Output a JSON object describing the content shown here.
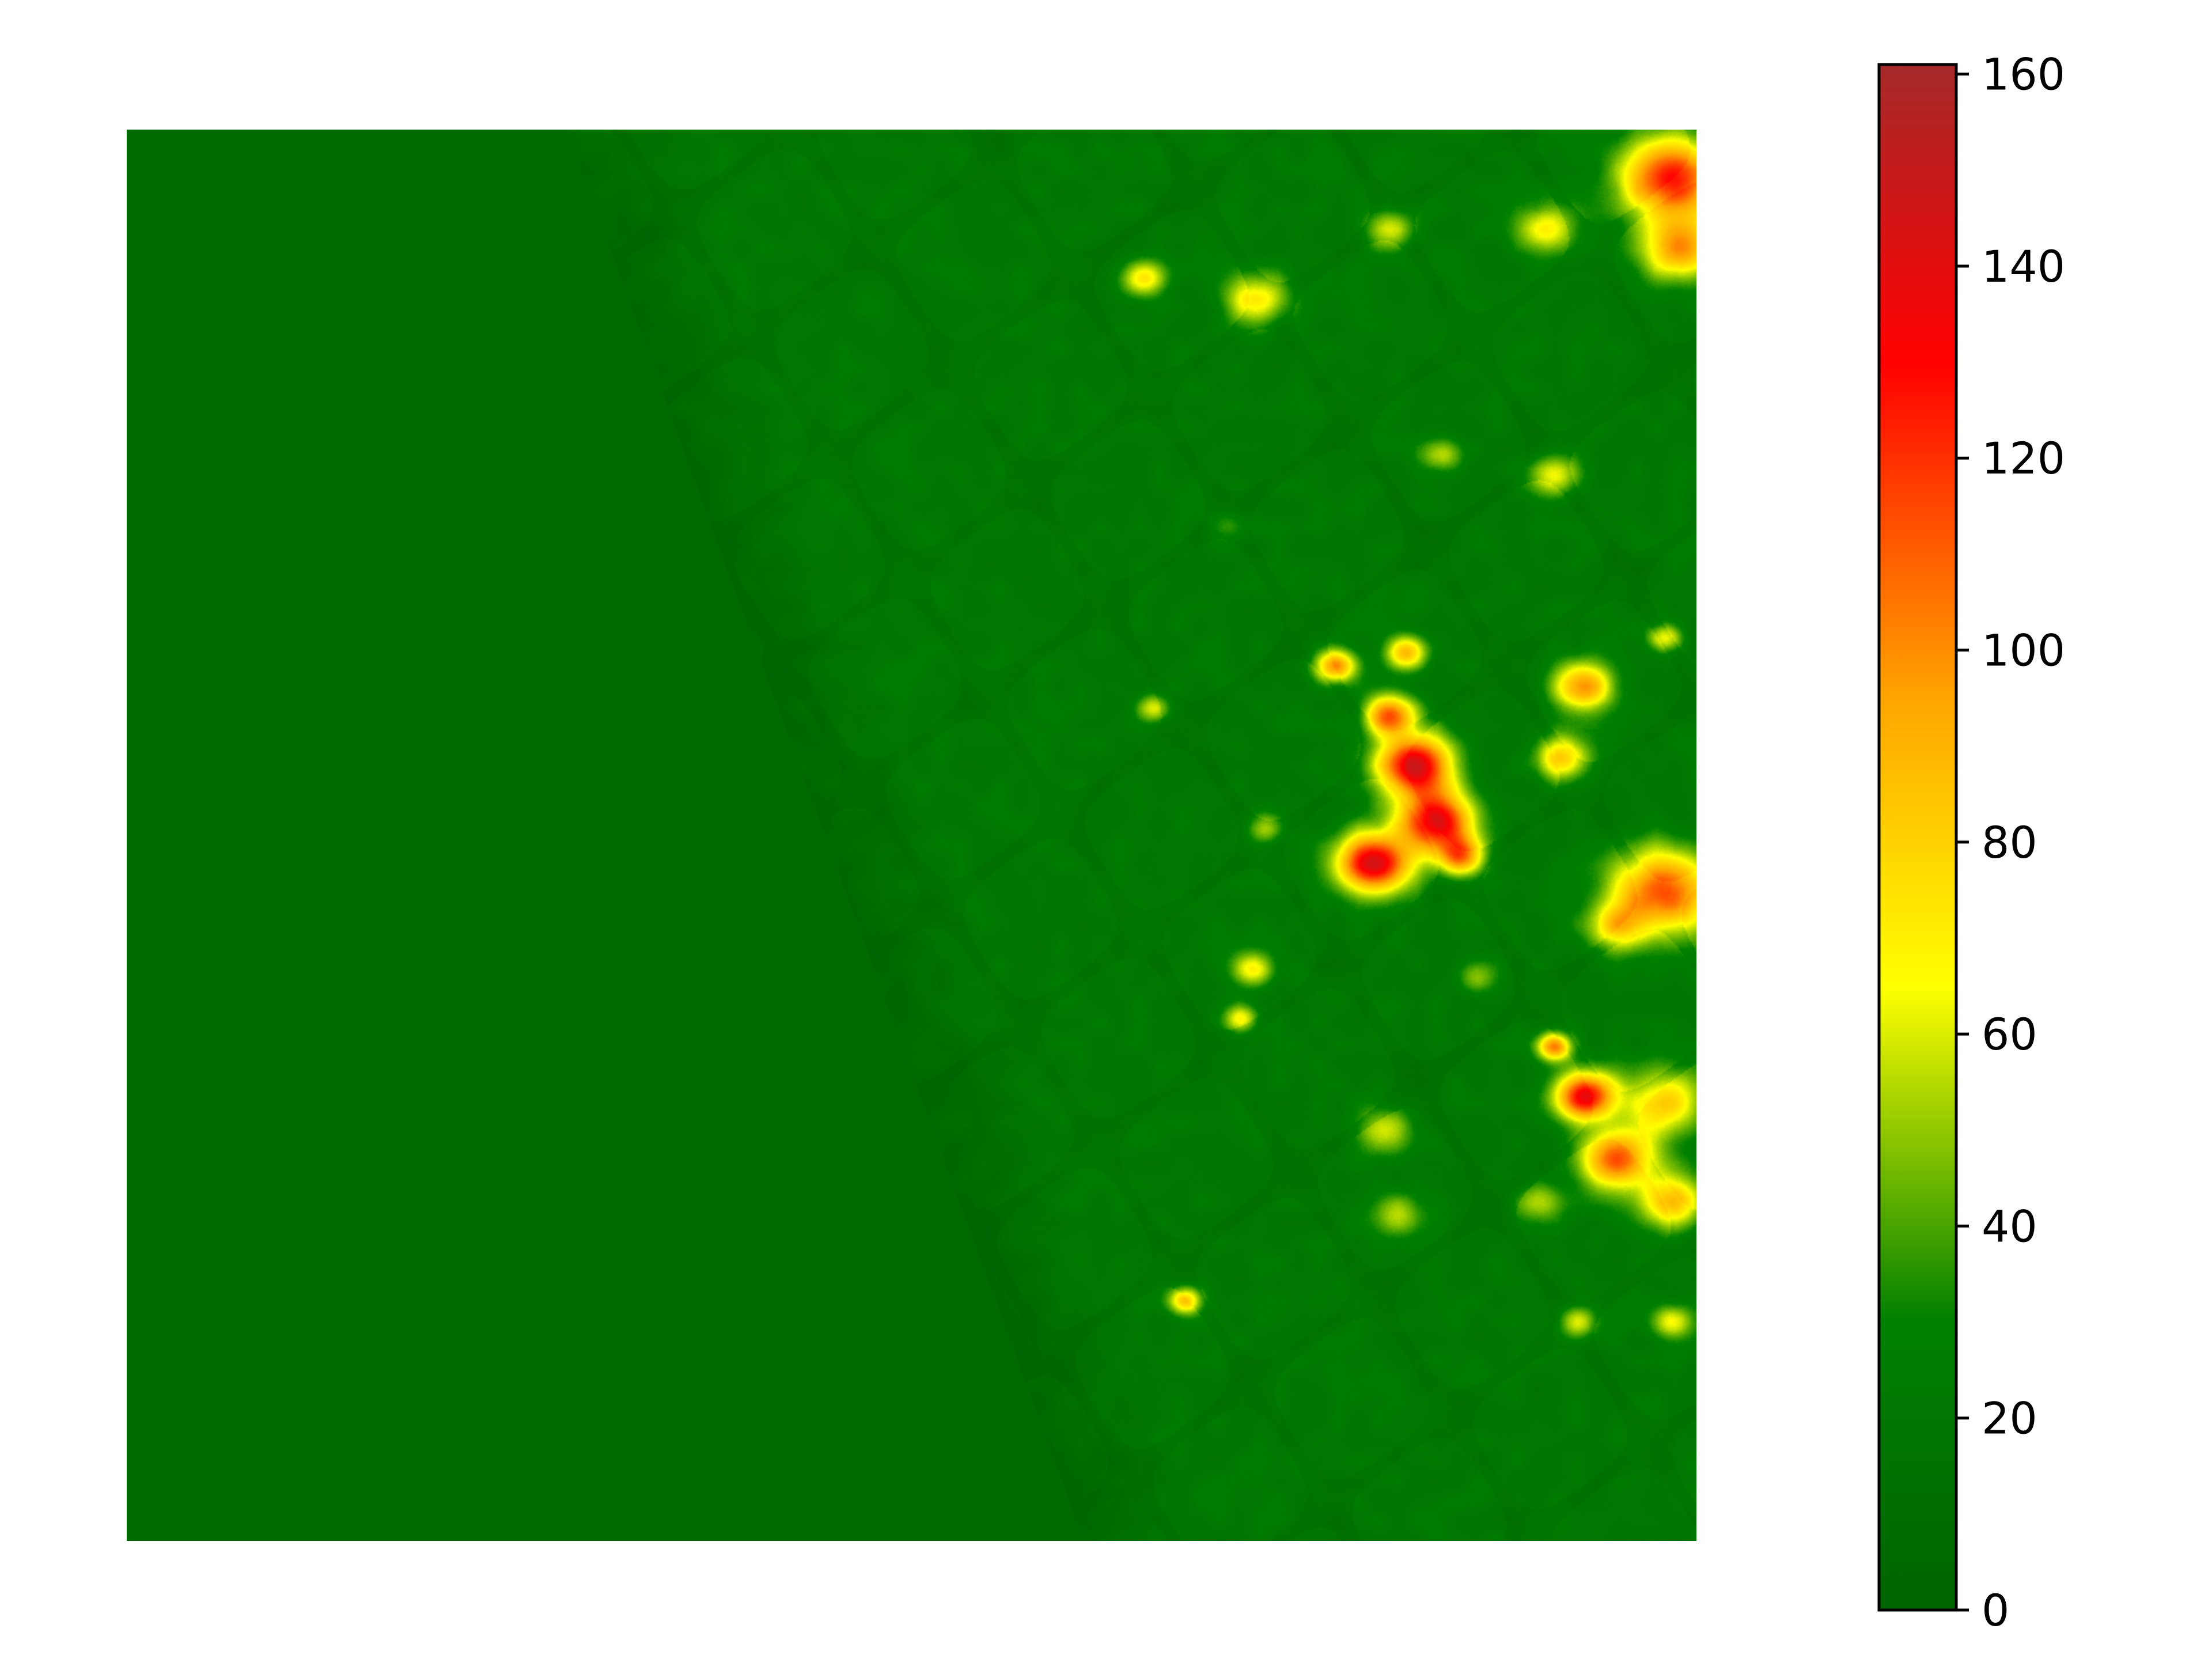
{
  "chart_data": {
    "type": "heatmap",
    "title": "",
    "xlabel": "",
    "ylabel": "",
    "colorbar": {
      "min": 0,
      "max": 161,
      "ticks": [
        0,
        20,
        40,
        60,
        80,
        100,
        120,
        140,
        160
      ],
      "tick_labels": [
        "0",
        "20",
        "40",
        "60",
        "80",
        "100",
        "120",
        "140",
        "160"
      ],
      "colormap": [
        {
          "value": 0,
          "color": "#006400"
        },
        {
          "value": 30,
          "color": "#008000"
        },
        {
          "value": 65,
          "color": "#ffff00"
        },
        {
          "value": 95,
          "color": "#ffa500"
        },
        {
          "value": 130,
          "color": "#ff0000"
        },
        {
          "value": 161,
          "color": "#a52a2a"
        }
      ]
    },
    "field": {
      "background_value": 5,
      "land_base_value": 22,
      "hotspots": [
        {
          "x": 0.648,
          "y": 0.105,
          "r": 0.013,
          "v": 75
        },
        {
          "x": 0.72,
          "y": 0.12,
          "r": 0.018,
          "v": 80
        },
        {
          "x": 0.805,
          "y": 0.07,
          "r": 0.015,
          "v": 62
        },
        {
          "x": 0.905,
          "y": 0.07,
          "r": 0.018,
          "v": 70
        },
        {
          "x": 0.985,
          "y": 0.035,
          "r": 0.03,
          "v": 130
        },
        {
          "x": 0.99,
          "y": 0.085,
          "r": 0.022,
          "v": 95
        },
        {
          "x": 0.838,
          "y": 0.23,
          "r": 0.012,
          "v": 60
        },
        {
          "x": 0.91,
          "y": 0.245,
          "r": 0.015,
          "v": 68
        },
        {
          "x": 0.98,
          "y": 0.36,
          "r": 0.01,
          "v": 70
        },
        {
          "x": 0.77,
          "y": 0.38,
          "r": 0.012,
          "v": 100
        },
        {
          "x": 0.815,
          "y": 0.37,
          "r": 0.012,
          "v": 90
        },
        {
          "x": 0.805,
          "y": 0.415,
          "r": 0.015,
          "v": 110
        },
        {
          "x": 0.82,
          "y": 0.45,
          "r": 0.022,
          "v": 150
        },
        {
          "x": 0.835,
          "y": 0.49,
          "r": 0.022,
          "v": 140
        },
        {
          "x": 0.85,
          "y": 0.515,
          "r": 0.014,
          "v": 100
        },
        {
          "x": 0.795,
          "y": 0.52,
          "r": 0.022,
          "v": 145
        },
        {
          "x": 0.928,
          "y": 0.395,
          "r": 0.018,
          "v": 100
        },
        {
          "x": 0.915,
          "y": 0.445,
          "r": 0.016,
          "v": 85
        },
        {
          "x": 0.98,
          "y": 0.54,
          "r": 0.03,
          "v": 120
        },
        {
          "x": 0.95,
          "y": 0.565,
          "r": 0.018,
          "v": 75
        },
        {
          "x": 0.655,
          "y": 0.41,
          "r": 0.01,
          "v": 65
        },
        {
          "x": 0.725,
          "y": 0.495,
          "r": 0.011,
          "v": 60
        },
        {
          "x": 0.718,
          "y": 0.595,
          "r": 0.012,
          "v": 70
        },
        {
          "x": 0.71,
          "y": 0.63,
          "r": 0.01,
          "v": 65
        },
        {
          "x": 0.91,
          "y": 0.65,
          "r": 0.01,
          "v": 105
        },
        {
          "x": 0.93,
          "y": 0.685,
          "r": 0.018,
          "v": 140
        },
        {
          "x": 0.95,
          "y": 0.73,
          "r": 0.022,
          "v": 110
        },
        {
          "x": 0.98,
          "y": 0.69,
          "r": 0.025,
          "v": 80
        },
        {
          "x": 0.985,
          "y": 0.76,
          "r": 0.02,
          "v": 90
        },
        {
          "x": 0.8,
          "y": 0.71,
          "r": 0.018,
          "v": 60
        },
        {
          "x": 0.81,
          "y": 0.77,
          "r": 0.016,
          "v": 55
        },
        {
          "x": 0.675,
          "y": 0.83,
          "r": 0.01,
          "v": 85
        },
        {
          "x": 0.925,
          "y": 0.845,
          "r": 0.012,
          "v": 68
        },
        {
          "x": 0.985,
          "y": 0.845,
          "r": 0.012,
          "v": 70
        },
        {
          "x": 0.9,
          "y": 0.76,
          "r": 0.014,
          "v": 55
        },
        {
          "x": 0.86,
          "y": 0.6,
          "r": 0.012,
          "v": 48
        },
        {
          "x": 0.7,
          "y": 0.28,
          "r": 0.012,
          "v": 42
        }
      ]
    }
  }
}
